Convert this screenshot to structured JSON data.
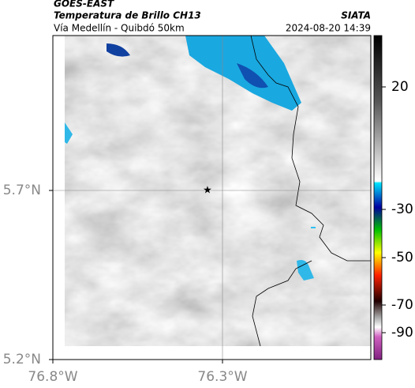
{
  "header": {
    "title": "GOES-EAST",
    "subtitle": "Temperatura de Brillo CH13",
    "location": "Vía Medellín - Quibdó 50km",
    "source": "SIATA",
    "timestamp": "2024-08-20 14:39"
  },
  "map": {
    "lat_labels": [
      "5.7°N",
      "5.2°N"
    ],
    "lon_labels": [
      "76.8°W",
      "76.3°W"
    ]
  },
  "colorbar": {
    "ticks": [
      20,
      -30,
      -50,
      -70,
      -90
    ]
  }
}
